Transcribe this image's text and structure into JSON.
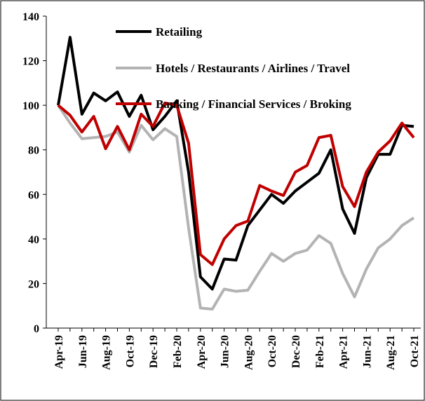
{
  "chart_data": {
    "type": "line",
    "categories": [
      "Apr-19",
      null,
      "Jun-19",
      null,
      "Aug-19",
      null,
      "Oct-19",
      null,
      "Dec-19",
      null,
      "Feb-20",
      null,
      "Apr-20",
      null,
      "Jun-20",
      null,
      "Aug-20",
      null,
      "Oct-20",
      null,
      "Dec-20",
      null,
      "Feb-21",
      null,
      "Apr-21",
      null,
      "Jun-21",
      null,
      "Aug-21",
      null,
      "Oct-21"
    ],
    "series": [
      {
        "name": "Retailing",
        "color": "#000000",
        "values": [
          100,
          130.5,
          96,
          105.5,
          102,
          106,
          95,
          104.5,
          89,
          95,
          102,
          70,
          23,
          17.5,
          31,
          30.5,
          46,
          53,
          60,
          56,
          61.5,
          65.5,
          69.5,
          80,
          53.5,
          42.5,
          67.5,
          78,
          78,
          91,
          90.5
        ]
      },
      {
        "name": "Hotels / Restaurants / Airlines / Travel",
        "color": "#b3b3b3",
        "values": [
          100,
          92,
          85,
          85.5,
          86,
          88,
          79,
          91,
          84.5,
          89.5,
          86,
          45,
          9,
          8.5,
          17.5,
          16.5,
          17,
          25.5,
          33.5,
          30,
          33.5,
          35,
          41.5,
          38,
          24.5,
          14,
          26.5,
          36,
          40,
          46,
          49.5
        ]
      },
      {
        "name": "Banking / Financial Services / Broking",
        "color": "#c00000",
        "values": [
          100,
          95.5,
          88,
          95,
          80.5,
          90.5,
          80,
          96,
          90.5,
          101,
          100,
          83,
          33,
          28.5,
          40,
          46,
          48,
          64,
          61.5,
          59.5,
          70,
          73,
          85.5,
          86.5,
          63.5,
          54.5,
          70,
          79,
          84,
          92,
          85.5
        ]
      }
    ],
    "ylim": [
      0,
      140
    ],
    "yticks": [
      0,
      20,
      40,
      60,
      80,
      100,
      120,
      140
    ]
  }
}
